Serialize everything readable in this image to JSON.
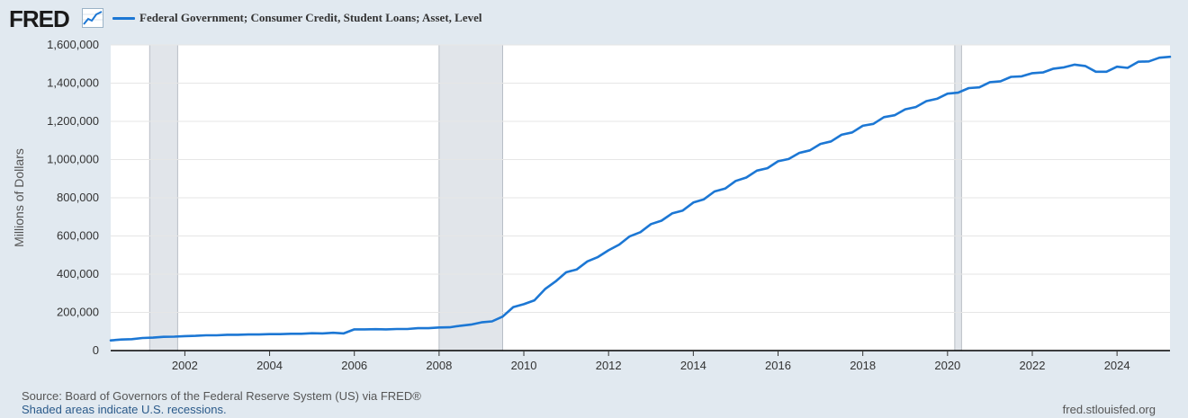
{
  "brand": {
    "name": "FRED",
    "icon": "chart-line-icon"
  },
  "legend": {
    "label": "Federal Government; Consumer Credit, Student Loans; Asset, Level",
    "color": "#1c77d4"
  },
  "footer": {
    "source": "Source: Board of Governors of the Federal Reserve System (US) via FRED®",
    "recession_note": "Shaded areas indicate U.S. recessions.",
    "url": "fred.stlouisfed.org"
  },
  "chart_data": {
    "type": "line",
    "title": "",
    "xlabel": "",
    "ylabel": "Millions of Dollars",
    "xlim": [
      2000.25,
      2025.25
    ],
    "ylim": [
      0,
      1600000
    ],
    "grid": true,
    "legend_position": "top-left",
    "x_ticks": [
      2002,
      2004,
      2006,
      2008,
      2010,
      2012,
      2014,
      2016,
      2018,
      2020,
      2022,
      2024
    ],
    "x_tick_labels": [
      "2002",
      "2004",
      "2006",
      "2008",
      "2010",
      "2012",
      "2014",
      "2016",
      "2018",
      "2020",
      "2022",
      "2024"
    ],
    "y_ticks": [
      0,
      200000,
      400000,
      600000,
      800000,
      1000000,
      1200000,
      1400000,
      1600000
    ],
    "y_tick_labels": [
      "0",
      "200,000",
      "400,000",
      "600,000",
      "800,000",
      "1,000,000",
      "1,200,000",
      "1,400,000",
      "1,600,000"
    ],
    "recessions": [
      [
        2001.17,
        2001.83
      ],
      [
        2008.0,
        2009.5
      ],
      [
        2020.17,
        2020.33
      ]
    ],
    "recession_color": "#e1e5ea",
    "series": [
      {
        "name": "Federal Government; Consumer Credit, Student Loans; Asset, Level",
        "color": "#1c77d4",
        "x": [
          2000.25,
          2000.5,
          2000.75,
          2001.0,
          2001.25,
          2001.5,
          2001.75,
          2002.0,
          2002.25,
          2002.5,
          2002.75,
          2003.0,
          2003.25,
          2003.5,
          2003.75,
          2004.0,
          2004.25,
          2004.5,
          2004.75,
          2005.0,
          2005.25,
          2005.5,
          2005.75,
          2006.0,
          2006.25,
          2006.5,
          2006.75,
          2007.0,
          2007.25,
          2007.5,
          2007.75,
          2008.0,
          2008.25,
          2008.5,
          2008.75,
          2009.0,
          2009.25,
          2009.5,
          2009.75,
          2010.0,
          2010.25,
          2010.5,
          2010.75,
          2011.0,
          2011.25,
          2011.5,
          2011.75,
          2012.0,
          2012.25,
          2012.5,
          2012.75,
          2013.0,
          2013.25,
          2013.5,
          2013.75,
          2014.0,
          2014.25,
          2014.5,
          2014.75,
          2015.0,
          2015.25,
          2015.5,
          2015.75,
          2016.0,
          2016.25,
          2016.5,
          2016.75,
          2017.0,
          2017.25,
          2017.5,
          2017.75,
          2018.0,
          2018.25,
          2018.5,
          2018.75,
          2019.0,
          2019.25,
          2019.5,
          2019.75,
          2020.0,
          2020.25,
          2020.5,
          2020.75,
          2021.0,
          2021.25,
          2021.5,
          2021.75,
          2022.0,
          2022.25,
          2022.5,
          2022.75,
          2023.0,
          2023.25,
          2023.5,
          2023.75,
          2024.0,
          2024.25,
          2024.5,
          2024.75,
          2025.0,
          2025.25
        ],
        "values": [
          53000,
          58000,
          60000,
          66000,
          68000,
          72000,
          73000,
          76000,
          77000,
          80000,
          80000,
          83000,
          83000,
          84000,
          84000,
          86000,
          86000,
          88000,
          88000,
          91000,
          90000,
          93000,
          90000,
          111000,
          111000,
          112000,
          111000,
          113000,
          113000,
          117000,
          117000,
          121000,
          122000,
          130000,
          136000,
          148000,
          153000,
          178000,
          228000,
          243000,
          263000,
          322000,
          362000,
          410000,
          425000,
          467000,
          490000,
          525000,
          555000,
          598000,
          620000,
          662000,
          680000,
          718000,
          733000,
          775000,
          792000,
          833000,
          848000,
          888000,
          906000,
          942000,
          955000,
          991000,
          1003000,
          1035000,
          1048000,
          1082000,
          1095000,
          1130000,
          1142000,
          1177000,
          1187000,
          1222000,
          1232000,
          1263000,
          1275000,
          1306000,
          1318000,
          1345000,
          1350000,
          1374000,
          1378000,
          1405000,
          1410000,
          1433000,
          1436000,
          1452000,
          1456000,
          1476000,
          1483000,
          1497000,
          1490000,
          1460000,
          1460000,
          1486000,
          1480000,
          1512000,
          1514000,
          1533000,
          1538000
        ]
      }
    ]
  }
}
